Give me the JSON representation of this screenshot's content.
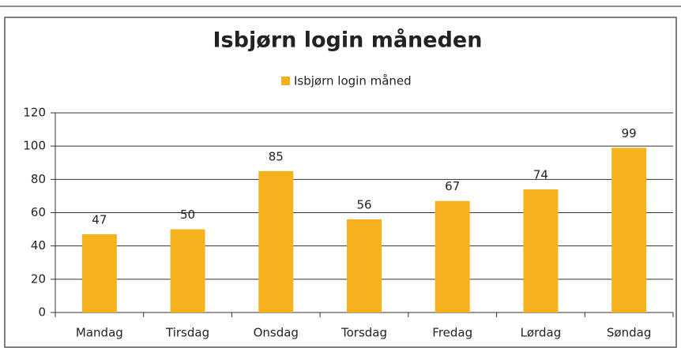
{
  "chart_data": {
    "type": "bar",
    "title": "Isbjørn login måneden",
    "categories": [
      "Mandag",
      "Tirsdag",
      "Onsdag",
      "Torsdag",
      "Fredag",
      "Lørdag",
      "Søndag"
    ],
    "series": [
      {
        "name": "Isbjørn login måned",
        "color": "#f5b21c",
        "values": [
          47,
          50,
          85,
          56,
          67,
          74,
          99
        ]
      }
    ],
    "ylim": [
      0,
      120
    ],
    "yticks": [
      0,
      20,
      40,
      60,
      80,
      100,
      120
    ],
    "grid": true,
    "legend": "top"
  }
}
